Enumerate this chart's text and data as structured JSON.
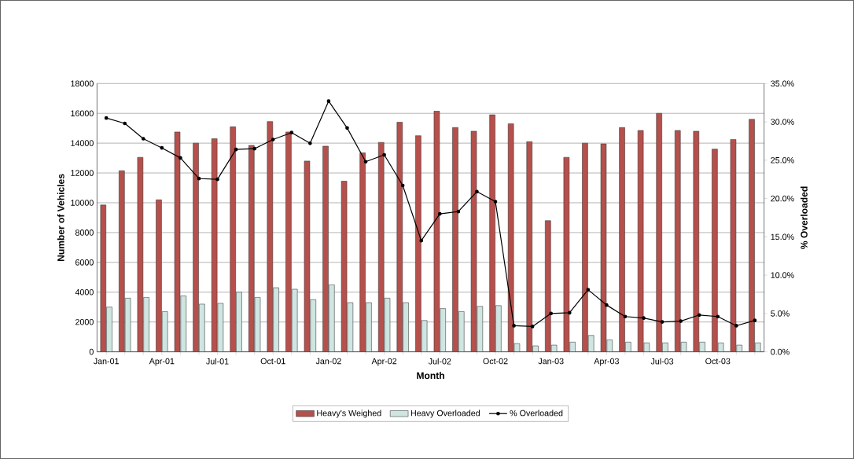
{
  "chart_data": {
    "type": "bar",
    "xlabel": "Month",
    "ylabel": "Number of Vehicles",
    "y2label": "% Overloaded",
    "categories": [
      "Jan-01",
      null,
      null,
      "Apr-01",
      null,
      null,
      "Jul-01",
      null,
      null,
      "Oct-01",
      null,
      null,
      "Jan-02",
      null,
      null,
      "Apr-02",
      null,
      null,
      "Jul-02",
      null,
      null,
      "Oct-02",
      null,
      null,
      "Jan-03",
      null,
      null,
      "Apr-03",
      null,
      null,
      "Jul-03",
      null,
      null,
      "Oct-03",
      null,
      null
    ],
    "series": [
      {
        "name": "Heavy's Weighed",
        "color": "#b5504c",
        "values": [
          9850,
          12150,
          13050,
          10200,
          14750,
          14000,
          14300,
          15100,
          13850,
          15450,
          14750,
          12800,
          13800,
          11450,
          13350,
          14050,
          15400,
          14500,
          16150,
          15050,
          14800,
          15900,
          15300,
          14100,
          8800,
          13050,
          14000,
          13950,
          15050,
          14850,
          16000,
          14850,
          14800,
          13600,
          14250,
          15600
        ]
      },
      {
        "name": "Heavy Overloaded",
        "color": "#cfe5e2",
        "values": [
          3000,
          3600,
          3650,
          2700,
          3750,
          3200,
          3250,
          4000,
          3650,
          4300,
          4200,
          3500,
          4500,
          3300,
          3300,
          3600,
          3300,
          2100,
          2900,
          2700,
          3050,
          3100,
          550,
          400,
          450,
          650,
          1100,
          800,
          650,
          600,
          600,
          650,
          650,
          600,
          450,
          600
        ]
      },
      {
        "name": "% Overloaded",
        "type": "line",
        "axis": "y2",
        "color": "#000000",
        "marker": "circle",
        "values": [
          30.5,
          29.8,
          27.8,
          26.6,
          25.3,
          22.6,
          22.5,
          26.4,
          26.5,
          27.7,
          28.6,
          27.2,
          32.7,
          29.2,
          24.8,
          25.7,
          21.7,
          14.5,
          18.0,
          18.3,
          20.9,
          19.6,
          3.4,
          3.3,
          5.0,
          5.1,
          8.1,
          6.1,
          4.6,
          4.4,
          3.9,
          4.0,
          4.8,
          4.6,
          3.4,
          4.1
        ]
      }
    ],
    "ylim": [
      0,
      18000
    ],
    "yticks": [
      0,
      2000,
      4000,
      6000,
      8000,
      10000,
      12000,
      14000,
      16000,
      18000
    ],
    "y2lim": [
      0,
      35
    ],
    "y2ticks": [
      {
        "value": 0,
        "label": "0.0%"
      },
      {
        "value": 5,
        "label": "5.0%"
      },
      {
        "value": 10,
        "label": "10.0%"
      },
      {
        "value": 15,
        "label": "15.0%"
      },
      {
        "value": 20,
        "label": "20.0%"
      },
      {
        "value": 25,
        "label": "25.0%"
      },
      {
        "value": 30,
        "label": "30.0%"
      },
      {
        "value": 35,
        "label": "35.0%"
      }
    ],
    "grid": "y",
    "legend": "bottom"
  }
}
